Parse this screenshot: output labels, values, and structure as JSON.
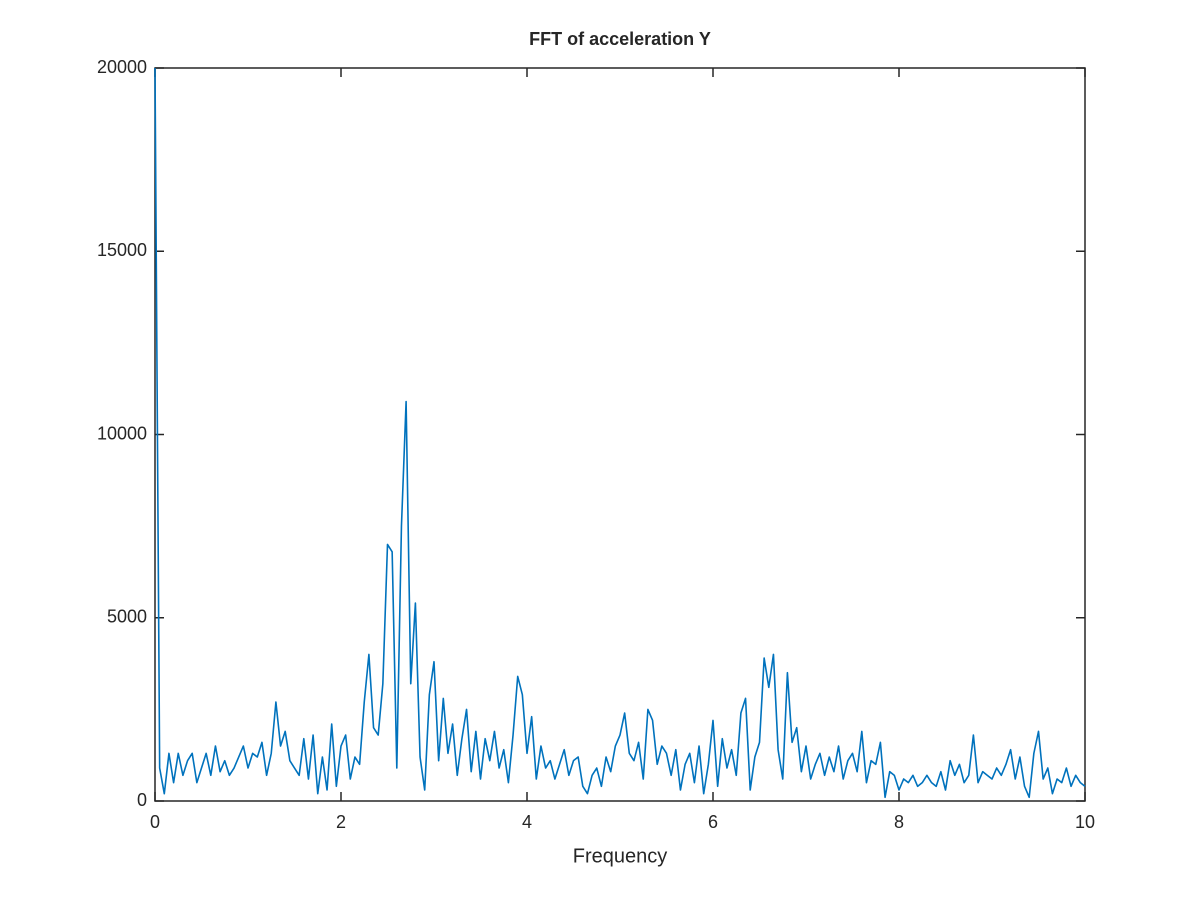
{
  "chart_data": {
    "type": "line",
    "title": "FFT of acceleration Y",
    "xlabel": "Frequency",
    "xlim": [
      0,
      10
    ],
    "ylim": [
      0,
      20000
    ],
    "xticks": [
      0,
      2,
      4,
      6,
      8,
      10
    ],
    "yticks": [
      0,
      5000,
      10000,
      15000,
      20000
    ],
    "grid": false,
    "x": [
      0,
      0.05,
      0.1,
      0.15,
      0.2,
      0.25,
      0.3,
      0.35,
      0.4,
      0.45,
      0.5,
      0.55,
      0.6,
      0.65,
      0.7,
      0.75,
      0.8,
      0.85,
      0.9,
      0.95,
      1,
      1.05,
      1.1,
      1.15,
      1.2,
      1.25,
      1.3,
      1.35,
      1.4,
      1.45,
      1.5,
      1.55,
      1.6,
      1.65,
      1.7,
      1.75,
      1.8,
      1.85,
      1.9,
      1.95,
      2,
      2.05,
      2.1,
      2.15,
      2.2,
      2.25,
      2.3,
      2.35,
      2.4,
      2.45,
      2.5,
      2.55,
      2.6,
      2.65,
      2.7,
      2.75,
      2.8,
      2.85,
      2.9,
      2.95,
      3,
      3.05,
      3.1,
      3.15,
      3.2,
      3.25,
      3.3,
      3.35,
      3.4,
      3.45,
      3.5,
      3.55,
      3.6,
      3.65,
      3.7,
      3.75,
      3.8,
      3.85,
      3.9,
      3.95,
      4,
      4.05,
      4.1,
      4.15,
      4.2,
      4.25,
      4.3,
      4.35,
      4.4,
      4.45,
      4.5,
      4.55,
      4.6,
      4.65,
      4.7,
      4.75,
      4.8,
      4.85,
      4.9,
      4.95,
      5,
      5.05,
      5.1,
      5.15,
      5.2,
      5.25,
      5.3,
      5.35,
      5.4,
      5.45,
      5.5,
      5.55,
      5.6,
      5.65,
      5.7,
      5.75,
      5.8,
      5.85,
      5.9,
      5.95,
      6,
      6.05,
      6.1,
      6.15,
      6.2,
      6.25,
      6.3,
      6.35,
      6.4,
      6.45,
      6.5,
      6.55,
      6.6,
      6.65,
      6.7,
      6.75,
      6.8,
      6.85,
      6.9,
      6.95,
      7,
      7.05,
      7.1,
      7.15,
      7.2,
      7.25,
      7.3,
      7.35,
      7.4,
      7.45,
      7.5,
      7.55,
      7.6,
      7.65,
      7.7,
      7.75,
      7.8,
      7.85,
      7.9,
      7.95,
      8,
      8.05,
      8.1,
      8.15,
      8.2,
      8.25,
      8.3,
      8.35,
      8.4,
      8.45,
      8.5,
      8.55,
      8.6,
      8.65,
      8.7,
      8.75,
      8.8,
      8.85,
      8.9,
      8.95,
      9,
      9.05,
      9.1,
      9.15,
      9.2,
      9.25,
      9.3,
      9.35,
      9.4,
      9.45,
      9.5,
      9.55,
      9.6,
      9.65,
      9.7,
      9.75,
      9.8,
      9.85,
      9.9,
      9.95,
      10
    ],
    "series": [
      {
        "color": "#0072bd",
        "values": [
          20000,
          900,
          200,
          1300,
          500,
          1300,
          700,
          1100,
          1300,
          500,
          900,
          1300,
          700,
          1500,
          800,
          1100,
          700,
          900,
          1200,
          1500,
          900,
          1300,
          1200,
          1600,
          700,
          1300,
          2700,
          1500,
          1900,
          1100,
          900,
          700,
          1700,
          600,
          1800,
          200,
          1200,
          300,
          2100,
          400,
          1500,
          1800,
          600,
          1200,
          1000,
          2700,
          4000,
          2000,
          1800,
          3200,
          7000,
          6800,
          900,
          7500,
          10900,
          3200,
          5400,
          1200,
          300,
          2900,
          3800,
          1100,
          2800,
          1300,
          2100,
          700,
          1700,
          2500,
          800,
          1900,
          600,
          1700,
          1100,
          1900,
          900,
          1400,
          500,
          1800,
          3400,
          2900,
          1300,
          2300,
          600,
          1500,
          900,
          1100,
          600,
          1000,
          1400,
          700,
          1100,
          1200,
          400,
          200,
          700,
          900,
          400,
          1200,
          800,
          1500,
          1800,
          2400,
          1300,
          1100,
          1600,
          600,
          2500,
          2200,
          1000,
          1500,
          1300,
          700,
          1400,
          300,
          1000,
          1300,
          500,
          1500,
          200,
          1000,
          2200,
          400,
          1700,
          900,
          1400,
          700,
          2400,
          2800,
          300,
          1200,
          1600,
          3900,
          3100,
          4000,
          1400,
          600,
          3500,
          1600,
          2000,
          800,
          1500,
          600,
          1000,
          1300,
          700,
          1200,
          800,
          1500,
          600,
          1100,
          1300,
          800,
          1900,
          500,
          1100,
          1000,
          1600,
          100,
          800,
          700,
          300,
          600,
          500,
          700,
          400,
          500,
          700,
          500,
          400,
          800,
          300,
          1100,
          700,
          1000,
          500,
          700,
          1800,
          500,
          800,
          700,
          600,
          900,
          700,
          1000,
          1400,
          600,
          1200,
          400,
          100,
          1300,
          1900,
          600,
          900,
          200,
          600,
          500,
          900,
          400,
          700,
          500,
          400
        ]
      }
    ]
  }
}
